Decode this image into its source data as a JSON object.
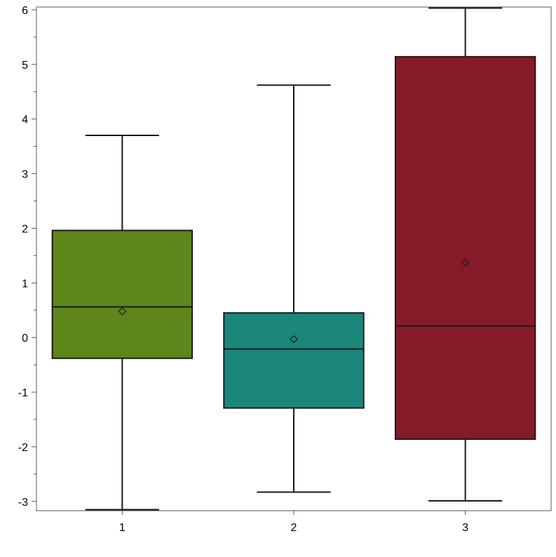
{
  "chart_data": {
    "type": "box",
    "title": "",
    "xlabel": "",
    "ylabel": "",
    "ylim": [
      -3.17,
      6.05
    ],
    "yticks": [
      "6",
      "5",
      "4",
      "3",
      "2",
      "1",
      "0",
      "-1",
      "-2",
      "-3"
    ],
    "ytick_values": [
      6,
      5,
      4,
      3,
      2,
      1,
      0,
      -1,
      -2,
      -3
    ],
    "categories": [
      "1",
      "2",
      "3"
    ],
    "grid": false,
    "boxes": [
      {
        "category": "1",
        "min": -3.15,
        "q1": -0.38,
        "median": 0.56,
        "q3": 1.96,
        "max": 3.7,
        "mean": 0.48,
        "color": "#5E861A"
      },
      {
        "category": "2",
        "min": -2.83,
        "q1": -1.29,
        "median": -0.21,
        "q3": 0.45,
        "max": 4.62,
        "mean": -0.03,
        "color": "#1B877B"
      },
      {
        "category": "3",
        "min": -2.99,
        "q1": -1.86,
        "median": 0.21,
        "q3": 5.14,
        "max": 6.03,
        "mean": 1.37,
        "color": "#871A28"
      }
    ]
  }
}
